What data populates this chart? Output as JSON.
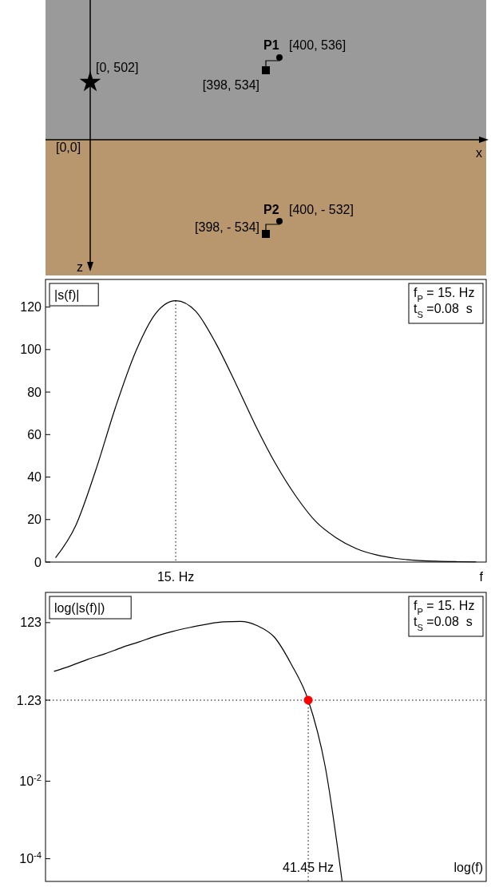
{
  "chart_data": [
    {
      "type": "other",
      "xlabel": "x",
      "ylabel": "z",
      "colors": [
        "#9a9a9a",
        "#b8966e"
      ],
      "annotations": [
        "[0, 502]",
        "[0,0]",
        "P1",
        "[400, 536]",
        "[398, 534]",
        "P2",
        "[400, - 532]",
        "[398, - 534]"
      ]
    },
    {
      "type": "line",
      "ylabel": "|s(f)|",
      "xlabel": "f",
      "color": "#000000",
      "categories": [
        null,
        null,
        null,
        null,
        null,
        null,
        null,
        null,
        null,
        null,
        null,
        null,
        null,
        null,
        null,
        null,
        null,
        null,
        null,
        null,
        null,
        null
      ],
      "values": [
        2,
        17,
        43,
        73,
        99,
        117,
        123,
        118,
        103,
        84,
        64,
        46,
        31,
        19,
        11.5,
        6.4,
        3.4,
        1.7,
        0.8,
        0.4,
        0.2,
        0.1
      ],
      "ylim": [
        0,
        133
      ],
      "yticks": [
        0,
        20,
        40,
        60,
        80,
        100,
        120
      ],
      "annotations": [
        "15. Hz",
        "f$_{P}$ = 15. Hz",
        "t$_{S}$ =0.08  s"
      ]
    },
    {
      "type": "line",
      "ylabel": "log(|s(f)|)",
      "xlabel": "log(f)",
      "log": "y",
      "categories": [
        null,
        null,
        null,
        null,
        null,
        null,
        null,
        null,
        null,
        null,
        null,
        null,
        null,
        null,
        null,
        null,
        null,
        null,
        null,
        null,
        null,
        null,
        null,
        null,
        null,
        null
      ],
      "series": [
        {
          "type": "line",
          "color": "#000000",
          "values": [
            6.8,
            9.5,
            13.9,
            19.3,
            28,
            39,
            55,
            73,
            92,
            112,
            129,
            132,
            102,
            52,
            10.4,
            1.23,
            0.024,
            2.6e-05,
            null,
            null,
            null,
            null,
            null,
            null,
            null,
            null
          ]
        },
        {
          "type": "scatter",
          "color": "#ff0000",
          "marker": "circle",
          "values": [
            null,
            null,
            null,
            null,
            null,
            null,
            null,
            null,
            null,
            null,
            null,
            null,
            null,
            null,
            null,
            1.23,
            null,
            null,
            null,
            null,
            null,
            null,
            null,
            null,
            null,
            null
          ]
        }
      ],
      "ylim": [
        2.6e-05,
        740
      ],
      "yticks": [
        123,
        1.23,
        {
          "value": 0.01,
          "label": "10$^{-2}$"
        },
        {
          "value": 0.0001,
          "label": "10$^{-4}$"
        }
      ],
      "ref_lines": [
        {
          "axis": "y",
          "value": 1.23,
          "line_style": "dotted"
        }
      ],
      "annotations": [
        "41.45 Hz",
        "f$_{P}$ = 15. Hz",
        "t$_{S}$ =0.08  s"
      ]
    }
  ]
}
